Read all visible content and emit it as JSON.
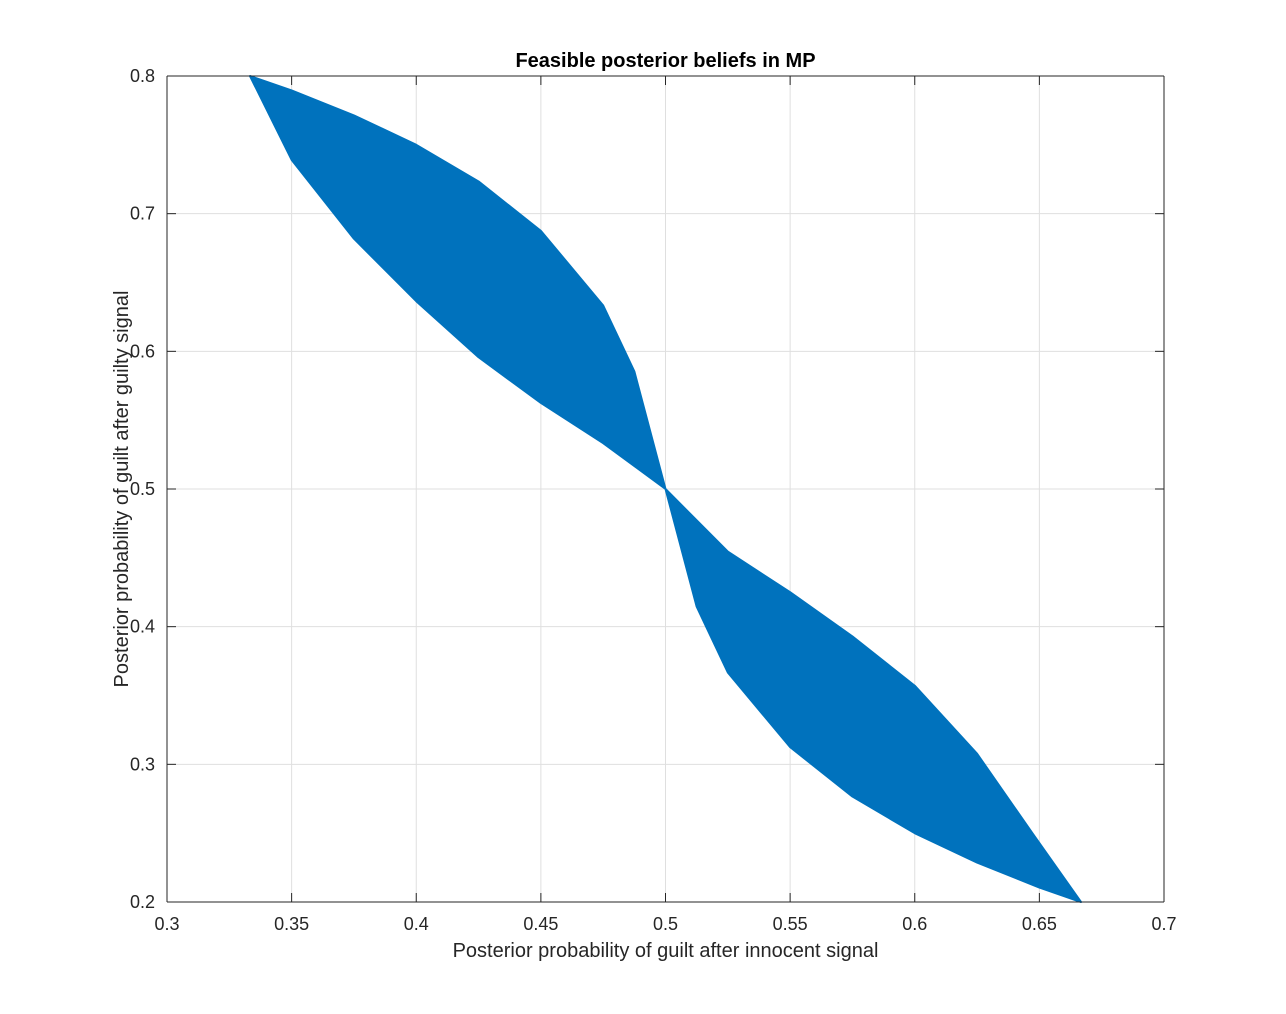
{
  "chart_data": {
    "type": "area",
    "title": "Feasible posterior beliefs in MP",
    "xlabel": "Posterior probability of guilt after innocent signal",
    "ylabel": "Posterior probability of guilt after guilty signal",
    "xlim": [
      0.3,
      0.7
    ],
    "ylim": [
      0.2,
      0.8
    ],
    "xticks": [
      "0.3",
      "0.35",
      "0.4",
      "0.45",
      "0.5",
      "0.55",
      "0.6",
      "0.65",
      "0.7"
    ],
    "yticks": [
      "0.2",
      "0.3",
      "0.4",
      "0.5",
      "0.6",
      "0.7",
      "0.8"
    ],
    "grid": true,
    "series": [
      {
        "color": "#0072BD",
        "region": {
          "upper_boundary": [
            [
              0.3333,
              0.8
            ],
            [
              0.35,
              0.7895
            ],
            [
              0.375,
              0.7714
            ],
            [
              0.4,
              0.75
            ],
            [
              0.425,
              0.7234
            ],
            [
              0.45,
              0.6875
            ],
            [
              0.475,
              0.6333
            ],
            [
              0.4875,
              0.5854
            ],
            [
              0.5,
              0.5
            ],
            [
              0.525,
              0.4545
            ],
            [
              0.55,
              0.425
            ],
            [
              0.575,
              0.3929
            ],
            [
              0.6,
              0.3571
            ],
            [
              0.625,
              0.3077
            ],
            [
              0.6472,
              0.25
            ],
            [
              0.6667,
              0.2
            ]
          ],
          "lower_boundary": [
            [
              0.3333,
              0.8
            ],
            [
              0.35,
              0.7391
            ],
            [
              0.375,
              0.6818
            ],
            [
              0.4,
              0.6364
            ],
            [
              0.425,
              0.5957
            ],
            [
              0.45,
              0.5625
            ],
            [
              0.475,
              0.5333
            ],
            [
              0.5,
              0.5
            ],
            [
              0.5125,
              0.4146
            ],
            [
              0.525,
              0.3667
            ],
            [
              0.55,
              0.3125
            ],
            [
              0.575,
              0.2766
            ],
            [
              0.6,
              0.25
            ],
            [
              0.625,
              0.2286
            ],
            [
              0.65,
              0.2105
            ],
            [
              0.6667,
              0.2
            ]
          ]
        }
      }
    ]
  }
}
